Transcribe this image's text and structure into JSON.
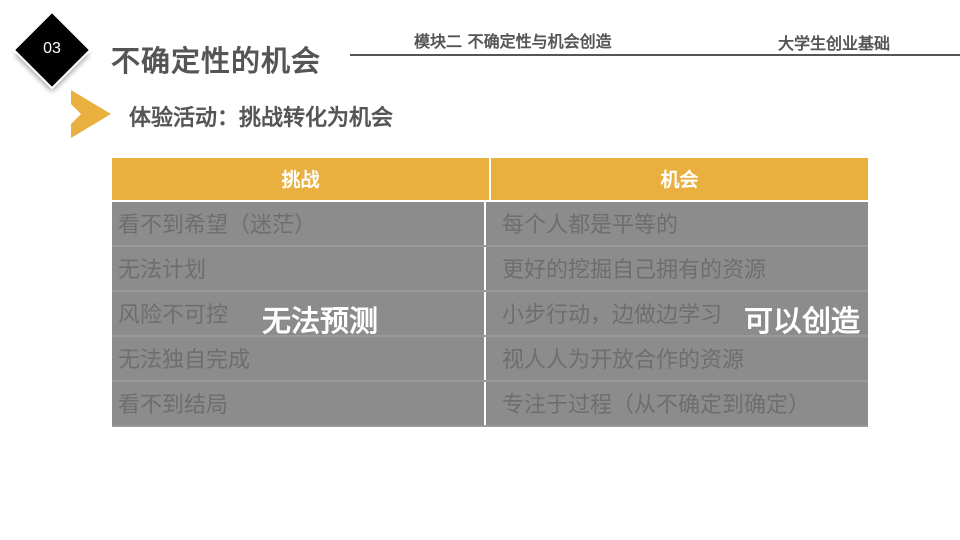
{
  "header": {
    "number": "03",
    "title": "不确定性的机会",
    "module": "模块二  不确定性与机会创造",
    "course": "大学生创业基础"
  },
  "subtitle": "体验活动：挑战转化为机会",
  "accent_color": "#E9B040",
  "table": {
    "headers": [
      "挑战",
      "机会"
    ],
    "rows": [
      [
        " 看不到希望（迷茫）",
        "每个人都是平等的"
      ],
      [
        "无法计划",
        "更好的挖掘自己拥有的资源"
      ],
      [
        "风险不可控",
        "小步行动，边做边学习"
      ],
      [
        "无法独自完成",
        "视人人为开放合作的资源"
      ],
      [
        "看不到结局",
        "专注于过程（从不确定到确定）"
      ]
    ]
  },
  "overlays": {
    "left": "无法预测",
    "right": "可以创造"
  }
}
